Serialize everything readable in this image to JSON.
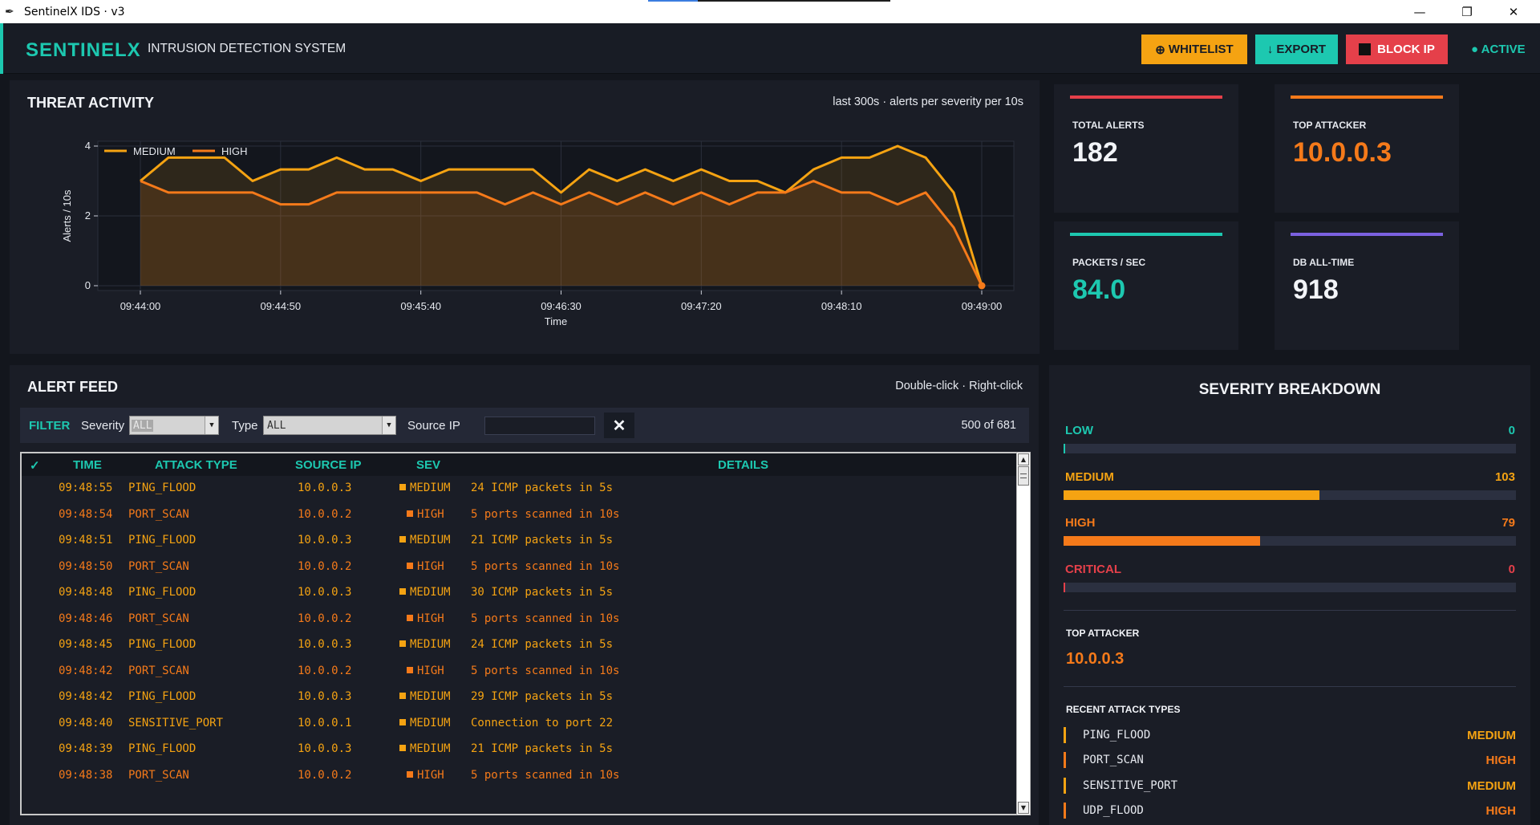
{
  "window": {
    "title": "SentinelX IDS  ·  v3",
    "controls": {
      "minimize": "—",
      "restore": "❐",
      "close": "✕"
    }
  },
  "header": {
    "brand": "SENTINELX",
    "subtitle": "INTRUSION DETECTION SYSTEM",
    "buttons": {
      "whitelist": {
        "icon": "⊕",
        "label": "WHITELIST"
      },
      "export": {
        "icon": "↓",
        "label": "EXPORT"
      },
      "block": {
        "label": "BLOCK IP"
      }
    },
    "status": "● ACTIVE"
  },
  "threat_activity": {
    "title": "THREAT ACTIVITY",
    "note": "last 300s  ·  alerts per severity per 10s"
  },
  "chart_data": {
    "type": "area",
    "xlabel": "Time",
    "ylabel": "Alerts / 10s",
    "x_ticks": [
      "09:44:00",
      "09:44:50",
      "09:45:40",
      "09:46:30",
      "09:47:20",
      "09:48:10",
      "09:49:00"
    ],
    "y_ticks": [
      0,
      2,
      4
    ],
    "ylim": [
      0,
      4
    ],
    "grid": true,
    "legend": "top-left",
    "x": [
      "09:44:00",
      "09:44:10",
      "09:44:20",
      "09:44:30",
      "09:44:40",
      "09:44:50",
      "09:45:00",
      "09:45:10",
      "09:45:20",
      "09:45:30",
      "09:45:40",
      "09:45:50",
      "09:46:00",
      "09:46:10",
      "09:46:20",
      "09:46:30",
      "09:46:40",
      "09:46:50",
      "09:47:00",
      "09:47:10",
      "09:47:20",
      "09:47:30",
      "09:47:40",
      "09:47:50",
      "09:48:00",
      "09:48:10",
      "09:48:20",
      "09:48:30",
      "09:48:40",
      "09:48:50",
      "09:49:00"
    ],
    "series": [
      {
        "name": "MEDIUM",
        "color": "#f5a312",
        "values": [
          3.0,
          3.67,
          3.67,
          3.67,
          3.0,
          3.33,
          3.33,
          3.67,
          3.33,
          3.33,
          3.0,
          3.33,
          3.33,
          3.33,
          3.33,
          2.67,
          3.33,
          3.0,
          3.33,
          3.0,
          3.33,
          3.0,
          3.0,
          2.67,
          3.33,
          3.67,
          3.67,
          4.0,
          3.67,
          2.67,
          0
        ]
      },
      {
        "name": "HIGH",
        "color": "#f57a1a",
        "values": [
          3.0,
          2.67,
          2.67,
          2.67,
          2.67,
          2.33,
          2.33,
          2.67,
          2.67,
          2.67,
          2.67,
          2.67,
          2.67,
          2.33,
          2.67,
          2.33,
          2.67,
          2.33,
          2.67,
          2.33,
          2.67,
          2.33,
          2.67,
          2.67,
          3.0,
          2.67,
          2.67,
          2.33,
          2.67,
          1.67,
          0
        ]
      }
    ]
  },
  "stats": {
    "total_alerts": {
      "label": "TOTAL ALERTS",
      "value": "182",
      "color": "#e5404a"
    },
    "top_attacker": {
      "label": "TOP ATTACKER",
      "value": "10.0.0.3",
      "color": "#f57a1a"
    },
    "packets_sec": {
      "label": "PACKETS / SEC",
      "value": "84.0",
      "color": "#1dc8b0"
    },
    "db_all_time": {
      "label": "DB ALL-TIME",
      "value": "918",
      "color": "#7b61e0"
    }
  },
  "alert_feed": {
    "title": "ALERT FEED",
    "hint": "Double-click · Right-click",
    "filter": {
      "label": "FILTER",
      "severity_label": "Severity",
      "severity_value": "ALL",
      "type_label": "Type",
      "type_value": "ALL",
      "ip_label": "Source IP",
      "ip_value": "",
      "clear": "✕",
      "count": "500 of 681"
    },
    "columns": {
      "check": "✓",
      "time": "TIME",
      "attack_type": "ATTACK TYPE",
      "source_ip": "SOURCE IP",
      "sev": "SEV",
      "details": "DETAILS"
    },
    "rows": [
      {
        "time": "09:48:55",
        "type": "PING_FLOOD",
        "ip": "10.0.0.3",
        "sev": "MEDIUM",
        "details": "24 ICMP packets in 5s"
      },
      {
        "time": "09:48:54",
        "type": "PORT_SCAN",
        "ip": "10.0.0.2",
        "sev": "HIGH",
        "details": "5 ports scanned in 10s"
      },
      {
        "time": "09:48:51",
        "type": "PING_FLOOD",
        "ip": "10.0.0.3",
        "sev": "MEDIUM",
        "details": "21 ICMP packets in 5s"
      },
      {
        "time": "09:48:50",
        "type": "PORT_SCAN",
        "ip": "10.0.0.2",
        "sev": "HIGH",
        "details": "5 ports scanned in 10s"
      },
      {
        "time": "09:48:48",
        "type": "PING_FLOOD",
        "ip": "10.0.0.3",
        "sev": "MEDIUM",
        "details": "30 ICMP packets in 5s"
      },
      {
        "time": "09:48:46",
        "type": "PORT_SCAN",
        "ip": "10.0.0.2",
        "sev": "HIGH",
        "details": "5 ports scanned in 10s"
      },
      {
        "time": "09:48:45",
        "type": "PING_FLOOD",
        "ip": "10.0.0.3",
        "sev": "MEDIUM",
        "details": "24 ICMP packets in 5s"
      },
      {
        "time": "09:48:42",
        "type": "PORT_SCAN",
        "ip": "10.0.0.2",
        "sev": "HIGH",
        "details": "5 ports scanned in 10s"
      },
      {
        "time": "09:48:42",
        "type": "PING_FLOOD",
        "ip": "10.0.0.3",
        "sev": "MEDIUM",
        "details": "29 ICMP packets in 5s"
      },
      {
        "time": "09:48:40",
        "type": "SENSITIVE_PORT",
        "ip": "10.0.0.1",
        "sev": "MEDIUM",
        "details": "Connection to port 22"
      },
      {
        "time": "09:48:39",
        "type": "PING_FLOOD",
        "ip": "10.0.0.3",
        "sev": "MEDIUM",
        "details": "21 ICMP packets in 5s"
      },
      {
        "time": "09:48:38",
        "type": "PORT_SCAN",
        "ip": "10.0.0.2",
        "sev": "HIGH",
        "details": "5 ports scanned in 10s"
      }
    ]
  },
  "severity_breakdown": {
    "title": "SEVERITY BREAKDOWN",
    "total": 182,
    "levels": [
      {
        "label": "LOW",
        "count": 0,
        "color": "#1dc8b0"
      },
      {
        "label": "MEDIUM",
        "count": 103,
        "color": "#f5a312"
      },
      {
        "label": "HIGH",
        "count": 79,
        "color": "#f57a1a"
      },
      {
        "label": "CRITICAL",
        "count": 0,
        "color": "#e5404a"
      }
    ],
    "top_attacker_label": "TOP ATTACKER",
    "top_attacker_value": "10.0.0.3",
    "recent_label": "RECENT ATTACK TYPES",
    "recent": [
      {
        "name": "PING_FLOOD",
        "sev": "MEDIUM"
      },
      {
        "name": "PORT_SCAN",
        "sev": "HIGH"
      },
      {
        "name": "SENSITIVE_PORT",
        "sev": "MEDIUM"
      },
      {
        "name": "UDP_FLOOD",
        "sev": "HIGH"
      }
    ]
  },
  "colors": {
    "accent": "#1dc8b0",
    "medium": "#f5a312",
    "high": "#f57a1a",
    "critical": "#e5404a",
    "background": "#13161d",
    "panel": "#1a1d26"
  },
  "icons": {
    "app": "feather-icon",
    "whitelist": "plus-circle-icon",
    "export": "download-arrow-icon",
    "block": "stop-square-icon",
    "clear": "close-icon"
  }
}
